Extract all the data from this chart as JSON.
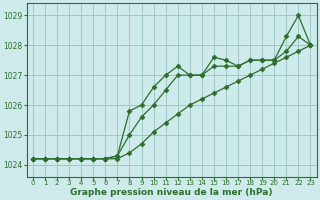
{
  "x": [
    0,
    1,
    2,
    3,
    4,
    5,
    6,
    7,
    8,
    9,
    10,
    11,
    12,
    13,
    14,
    15,
    16,
    17,
    18,
    19,
    20,
    21,
    22,
    23
  ],
  "line1": [
    1024.2,
    1024.2,
    1024.2,
    1024.2,
    1024.2,
    1024.2,
    1024.2,
    1024.3,
    1025.8,
    1026.0,
    1026.6,
    1027.0,
    1027.3,
    1027.0,
    1027.0,
    1027.6,
    1027.5,
    1027.3,
    1027.5,
    1027.5,
    1027.5,
    1028.3,
    1029.0,
    1028.0
  ],
  "line2": [
    1024.2,
    1024.2,
    1024.2,
    1024.2,
    1024.2,
    1024.2,
    1024.2,
    1024.3,
    1025.0,
    1025.6,
    1026.0,
    1026.5,
    1027.0,
    1027.0,
    1027.0,
    1027.3,
    1027.3,
    1027.3,
    1027.5,
    1027.5,
    1027.5,
    1027.8,
    1028.3,
    1028.0
  ],
  "line3": [
    1024.2,
    1024.2,
    1024.2,
    1024.2,
    1024.2,
    1024.2,
    1024.2,
    1024.2,
    1024.4,
    1024.7,
    1025.1,
    1025.4,
    1025.7,
    1026.0,
    1026.2,
    1026.4,
    1026.6,
    1026.8,
    1027.0,
    1027.2,
    1027.4,
    1027.6,
    1027.8,
    1028.0
  ],
  "line_color": "#2d6e2d",
  "bg_color": "#ceeaea",
  "grid_color": "#9ec8c8",
  "xlabel": "Graphe pression niveau de la mer (hPa)",
  "ylim": [
    1023.6,
    1029.4
  ],
  "yticks": [
    1024,
    1025,
    1026,
    1027,
    1028,
    1029
  ],
  "xticks": [
    0,
    1,
    2,
    3,
    4,
    5,
    6,
    7,
    8,
    9,
    10,
    11,
    12,
    13,
    14,
    15,
    16,
    17,
    18,
    19,
    20,
    21,
    22,
    23
  ],
  "marker_size": 2.5,
  "line_width": 0.9
}
